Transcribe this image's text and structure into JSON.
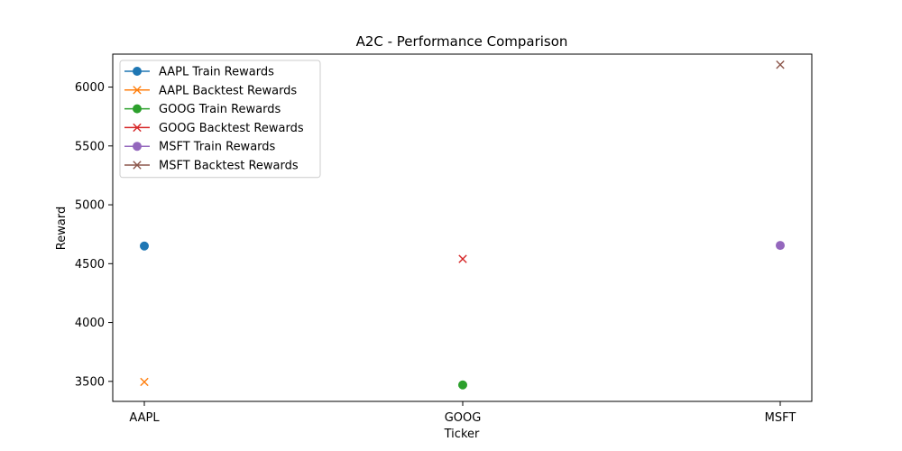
{
  "chart_data": {
    "type": "scatter",
    "title": "A2C - Performance Comparison",
    "xlabel": "Ticker",
    "ylabel": "Reward",
    "categories": [
      "AAPL",
      "GOOG",
      "MSFT"
    ],
    "ylim": [
      3330,
      6280
    ],
    "yticks": [
      3500,
      4000,
      4500,
      5000,
      5500,
      6000
    ],
    "grid": false,
    "legend_position": "top-left",
    "series": [
      {
        "name": "AAPL Train Rewards",
        "color": "#1f77b4",
        "marker": "circle",
        "points": [
          {
            "x": "AAPL",
            "y": 4650
          }
        ]
      },
      {
        "name": "AAPL Backtest Rewards",
        "color": "#ff7f0e",
        "marker": "x",
        "points": [
          {
            "x": "AAPL",
            "y": 3495
          }
        ]
      },
      {
        "name": "GOOG Train Rewards",
        "color": "#2ca02c",
        "marker": "circle",
        "points": [
          {
            "x": "GOOG",
            "y": 3470
          }
        ]
      },
      {
        "name": "GOOG Backtest Rewards",
        "color": "#d62728",
        "marker": "x",
        "points": [
          {
            "x": "GOOG",
            "y": 4540
          }
        ]
      },
      {
        "name": "MSFT Train Rewards",
        "color": "#9467bd",
        "marker": "circle",
        "points": [
          {
            "x": "MSFT",
            "y": 4655
          }
        ]
      },
      {
        "name": "MSFT Backtest Rewards",
        "color": "#8c564b",
        "marker": "x",
        "points": [
          {
            "x": "MSFT",
            "y": 6190
          }
        ]
      }
    ]
  }
}
